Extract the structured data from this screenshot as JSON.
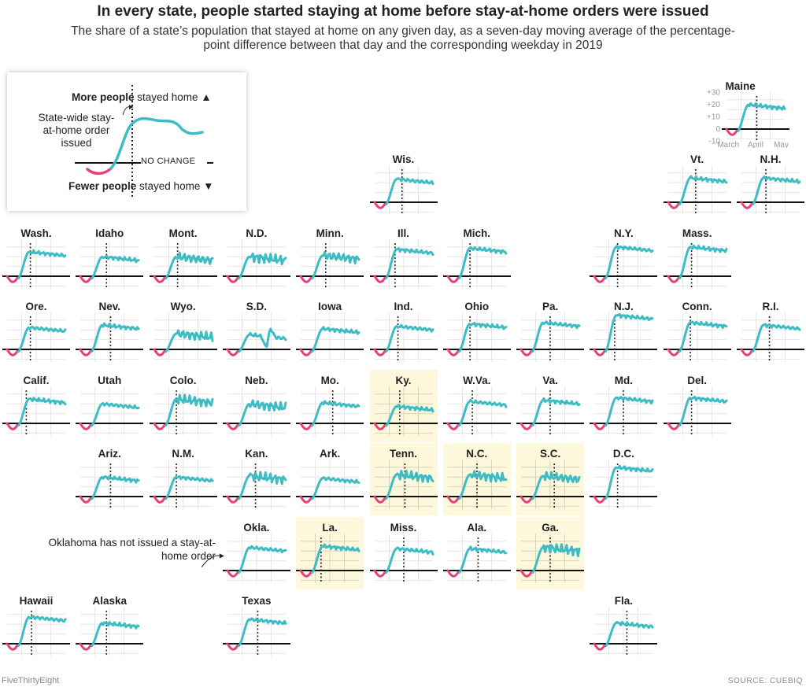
{
  "title": "In every state, people started staying at home before stay-at-home orders were issued",
  "subtitle": "The share of a state’s population that stayed at home on any given day, as a seven-day moving average of the percentage-point difference between that day and the corresponding weekday in 2019",
  "legend": {
    "top_bold": "More people",
    "top_rest": " stayed home",
    "top_arrow": "▲",
    "bottom_bold": "Fewer people",
    "bottom_rest": " stayed home",
    "bottom_arrow": "▼",
    "order_label": "State-wide stay-at-home order issued",
    "no_change": "NO CHANGE"
  },
  "oklahoma_note": "Oklahoma has not issued a stay-at-home order",
  "footer": {
    "left": "FiveThirtyEight",
    "right": "SOURCE: CUEBIQ"
  },
  "colors": {
    "before": "#e8407a",
    "after": "#3dbcc4",
    "highlight": "#fdf8dc",
    "zero_line": "#111111"
  },
  "chart_data": {
    "type": "line",
    "layout": "tile grid map of U.S. states",
    "y_unit": "percentage-point difference vs. same weekday in 2019",
    "y_ticks": [
      "+30",
      "+20",
      "+10",
      "0",
      "-10"
    ],
    "ylim": [
      -10,
      30
    ],
    "x_ticks": [
      "March",
      "April",
      "May"
    ],
    "states": [
      {
        "name": "Maine",
        "col": 9.6,
        "row": -1,
        "shape": "std",
        "order": 0.52,
        "plateau": 20,
        "axes": true
      },
      {
        "name": "Wis.",
        "col": 5,
        "row": 0,
        "shape": "std",
        "order": 0.47,
        "plateau": 19
      },
      {
        "name": "Vt.",
        "col": 9,
        "row": 0,
        "shape": "std",
        "order": 0.47,
        "plateau": 20
      },
      {
        "name": "N.H.",
        "col": 10,
        "row": 0,
        "shape": "std",
        "order": 0.42,
        "plateau": 20
      },
      {
        "name": "Wash.",
        "col": 0,
        "row": 1,
        "shape": "std",
        "order": 0.4,
        "plateau": 20
      },
      {
        "name": "Idaho",
        "col": 1,
        "row": 1,
        "shape": "std",
        "order": 0.45,
        "plateau": 16
      },
      {
        "name": "Mont.",
        "col": 2,
        "row": 1,
        "shape": "jag",
        "order": 0.4,
        "plateau": 16
      },
      {
        "name": "N.D.",
        "col": 3,
        "row": 1,
        "shape": "jag",
        "order": null,
        "plateau": 16
      },
      {
        "name": "Minn.",
        "col": 4,
        "row": 1,
        "shape": "jag",
        "order": 0.43,
        "plateau": 17
      },
      {
        "name": "Ill.",
        "col": 5,
        "row": 1,
        "shape": "std",
        "order": 0.35,
        "plateau": 22
      },
      {
        "name": "Mich.",
        "col": 6,
        "row": 1,
        "shape": "std",
        "order": 0.38,
        "plateau": 23
      },
      {
        "name": "N.Y.",
        "col": 8,
        "row": 1,
        "shape": "std",
        "order": 0.4,
        "plateau": 24
      },
      {
        "name": "Mass.",
        "col": 9,
        "row": 1,
        "shape": "std",
        "order": 0.4,
        "plateau": 24
      },
      {
        "name": "Ore.",
        "col": 0,
        "row": 2,
        "shape": "std",
        "order": 0.4,
        "plateau": 18
      },
      {
        "name": "Nev.",
        "col": 1,
        "row": 2,
        "shape": "std",
        "order": 0.52,
        "plateau": 20
      },
      {
        "name": "Wyo.",
        "col": 2,
        "row": 2,
        "shape": "jag",
        "order": null,
        "plateau": 13
      },
      {
        "name": "S.D.",
        "col": 3,
        "row": 2,
        "shape": "sd",
        "order": null,
        "plateau": 12
      },
      {
        "name": "Iowa",
        "col": 4,
        "row": 2,
        "shape": "std",
        "order": null,
        "plateau": 17
      },
      {
        "name": "Ind.",
        "col": 5,
        "row": 2,
        "shape": "std",
        "order": 0.4,
        "plateau": 19
      },
      {
        "name": "Ohio",
        "col": 6,
        "row": 2,
        "shape": "std",
        "order": 0.38,
        "plateau": 21
      },
      {
        "name": "Pa.",
        "col": 7,
        "row": 2,
        "shape": "std",
        "order": 0.5,
        "plateau": 22
      },
      {
        "name": "N.J.",
        "col": 8,
        "row": 2,
        "shape": "std",
        "order": 0.35,
        "plateau": 28
      },
      {
        "name": "Conn.",
        "col": 9,
        "row": 2,
        "shape": "std",
        "order": 0.38,
        "plateau": 22
      },
      {
        "name": "R.I.",
        "col": 10,
        "row": 2,
        "shape": "std",
        "order": 0.48,
        "plateau": 20
      },
      {
        "name": "Calif.",
        "col": 0,
        "row": 3,
        "shape": "std",
        "order": 0.33,
        "plateau": 20
      },
      {
        "name": "Utah",
        "col": 1,
        "row": 3,
        "shape": "std",
        "order": null,
        "plateau": 16
      },
      {
        "name": "Colo.",
        "col": 2,
        "row": 3,
        "shape": "jag",
        "order": 0.38,
        "plateau": 20
      },
      {
        "name": "Neb.",
        "col": 3,
        "row": 3,
        "shape": "jag",
        "order": null,
        "plateau": 16
      },
      {
        "name": "Mo.",
        "col": 4,
        "row": 3,
        "shape": "std",
        "order": 0.55,
        "plateau": 17
      },
      {
        "name": "Ky.",
        "col": 5,
        "row": 3,
        "shape": "std",
        "order": 0.43,
        "plateau": 14,
        "hl": true
      },
      {
        "name": "W.Va.",
        "col": 6,
        "row": 3,
        "shape": "std",
        "order": 0.42,
        "plateau": 18
      },
      {
        "name": "Va.",
        "col": 7,
        "row": 3,
        "shape": "std",
        "order": 0.5,
        "plateau": 19
      },
      {
        "name": "Md.",
        "col": 8,
        "row": 3,
        "shape": "std",
        "order": 0.5,
        "plateau": 21
      },
      {
        "name": "Del.",
        "col": 9,
        "row": 3,
        "shape": "std",
        "order": 0.4,
        "plateau": 21
      },
      {
        "name": "Ariz.",
        "col": 1,
        "row": 4,
        "shape": "std",
        "order": 0.52,
        "plateau": 16
      },
      {
        "name": "N.M.",
        "col": 2,
        "row": 4,
        "shape": "std",
        "order": 0.38,
        "plateau": 16
      },
      {
        "name": "Kan.",
        "col": 3,
        "row": 4,
        "shape": "jag",
        "order": 0.48,
        "plateau": 17
      },
      {
        "name": "Ark.",
        "col": 4,
        "row": 4,
        "shape": "std",
        "order": null,
        "plateau": 15
      },
      {
        "name": "Tenn.",
        "col": 5,
        "row": 4,
        "shape": "jag",
        "order": 0.52,
        "plateau": 18,
        "hl": true
      },
      {
        "name": "N.C.",
        "col": 6,
        "row": 4,
        "shape": "jag",
        "order": 0.5,
        "plateau": 18,
        "hl": true
      },
      {
        "name": "S.C.",
        "col": 7,
        "row": 4,
        "shape": "jag",
        "order": 0.57,
        "plateau": 17,
        "hl": true
      },
      {
        "name": "D.C.",
        "col": 8,
        "row": 4,
        "shape": "std",
        "order": 0.4,
        "plateau": 24
      },
      {
        "name": "Okla.",
        "col": 3,
        "row": 5,
        "shape": "std",
        "order": null,
        "plateau": 19
      },
      {
        "name": "La.",
        "col": 4,
        "row": 5,
        "shape": "std",
        "order": 0.35,
        "plateau": 20,
        "hl": true
      },
      {
        "name": "Miss.",
        "col": 5,
        "row": 5,
        "shape": "std",
        "order": 0.5,
        "plateau": 18
      },
      {
        "name": "Ala.",
        "col": 6,
        "row": 5,
        "shape": "std",
        "order": 0.52,
        "plateau": 18
      },
      {
        "name": "Ga.",
        "col": 7,
        "row": 5,
        "shape": "jag",
        "order": 0.5,
        "plateau": 19,
        "hl": true
      },
      {
        "name": "Hawaii",
        "col": 0,
        "row": 6,
        "shape": "std",
        "order": 0.42,
        "plateau": 22
      },
      {
        "name": "Alaska",
        "col": 1,
        "row": 6,
        "shape": "std",
        "order": 0.45,
        "plateau": 17
      },
      {
        "name": "Texas",
        "col": 3,
        "row": 6,
        "shape": "std",
        "order": 0.52,
        "plateau": 20
      },
      {
        "name": "Fla.",
        "col": 8,
        "row": 6,
        "shape": "std",
        "order": 0.56,
        "plateau": 17
      }
    ]
  }
}
